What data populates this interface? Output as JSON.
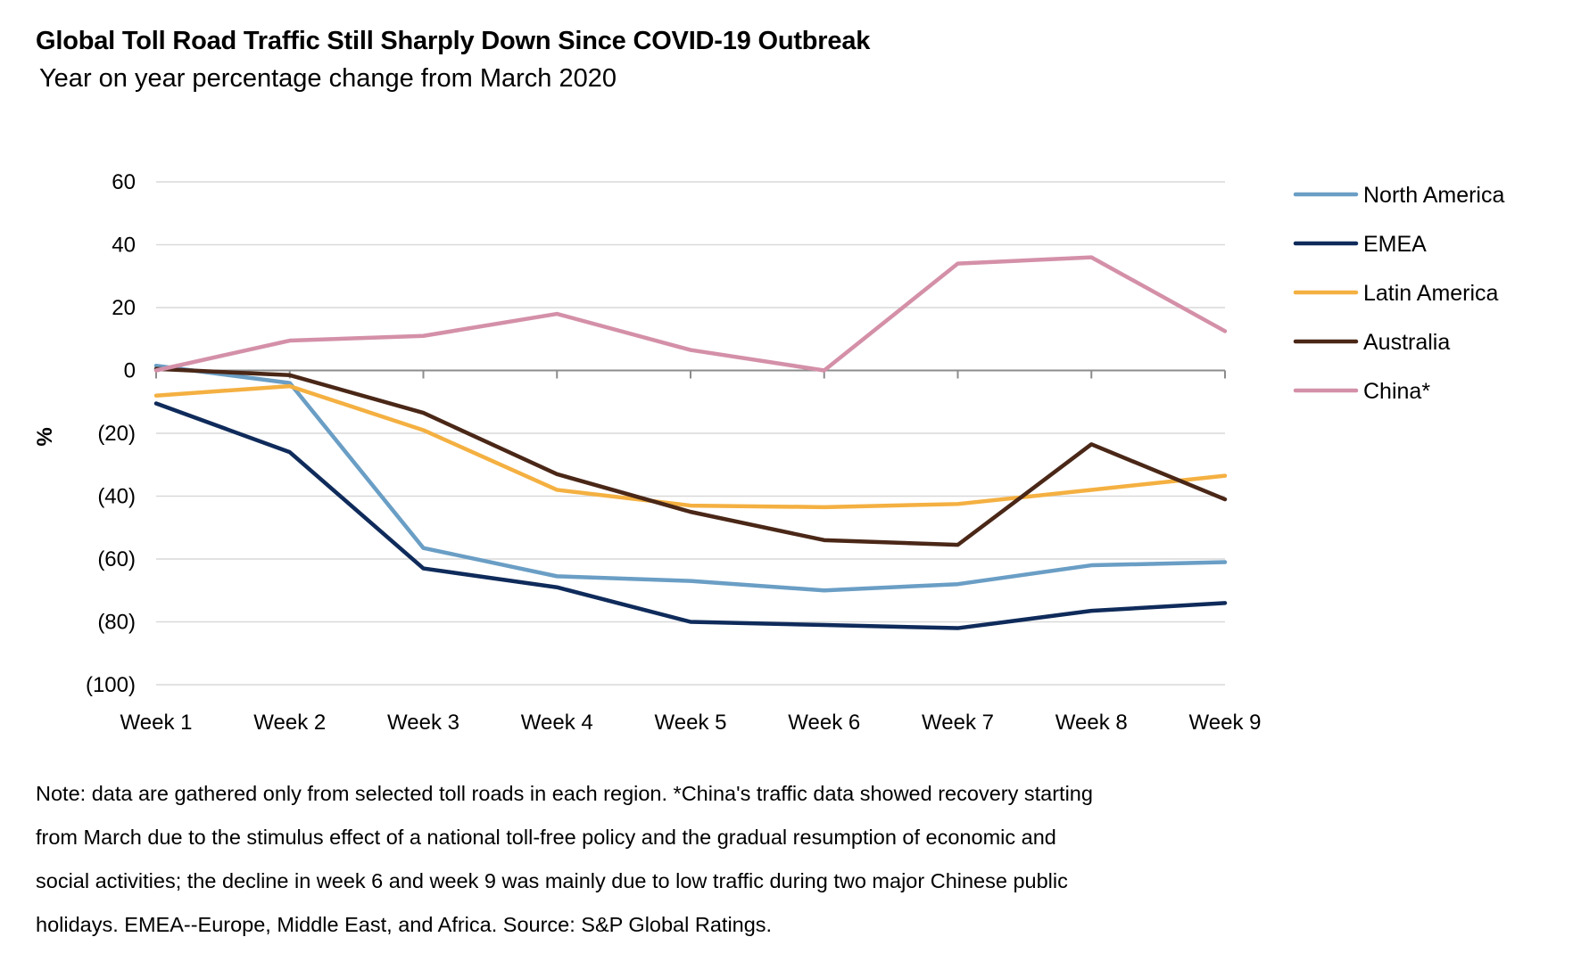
{
  "header": {
    "title": "Global Toll Road Traffic Still Sharply Down Since COVID-19 Outbreak",
    "subtitle": "Year on year percentage change from March 2020"
  },
  "chart_data": {
    "type": "line",
    "title": "Global Toll Road Traffic Still Sharply Down Since COVID-19 Outbreak",
    "subtitle": "Year on year percentage change from March 2020",
    "xlabel": "",
    "ylabel": "%",
    "categories": [
      "Week 1",
      "Week 2",
      "Week 3",
      "Week 4",
      "Week 5",
      "Week 6",
      "Week 7",
      "Week 8",
      "Week 9"
    ],
    "ylim": [
      -100,
      60
    ],
    "yticks": [
      60,
      40,
      20,
      0,
      -20,
      -40,
      -60,
      -80,
      -100
    ],
    "ytick_labels": [
      "60",
      "40",
      "20",
      "0",
      "(20)",
      "(40)",
      "(60)",
      "(80)",
      "(100)"
    ],
    "grid": true,
    "legend_position": "right",
    "series": [
      {
        "name": "North America",
        "color": "#6a9ec5",
        "values": [
          1.5,
          -4,
          -56.5,
          -65.5,
          -67,
          -70,
          -68,
          -62,
          -61
        ]
      },
      {
        "name": "EMEA",
        "color": "#0f2b5b",
        "values": [
          -10.5,
          -26,
          -63,
          -69,
          -80,
          -81,
          -82,
          -76.5,
          -74
        ]
      },
      {
        "name": "Latin America",
        "color": "#f4b041",
        "values": [
          -8,
          -5,
          -19,
          -38,
          -43,
          -43.5,
          -42.5,
          -38,
          -33.5
        ]
      },
      {
        "name": "Australia",
        "color": "#4a2717",
        "values": [
          0.5,
          -1.5,
          -13.5,
          -33,
          -45,
          -54,
          -55.5,
          -23.5,
          -41
        ]
      },
      {
        "name": "China*",
        "color": "#d490a8",
        "values": [
          0,
          9.5,
          11,
          18,
          6.5,
          0,
          34,
          36,
          12.5
        ]
      }
    ]
  },
  "note": {
    "lines": [
      "Note: data are gathered only from selected toll roads in each region. *China's traffic data showed recovery starting",
      "from March due to the stimulus effect of a national toll-free policy and the gradual resumption of economic and",
      "social activities; the decline in week 6 and week 9 was mainly due to low traffic during two major Chinese public",
      "holidays. EMEA--Europe, Middle East, and Africa. Source: S&P Global Ratings."
    ]
  }
}
